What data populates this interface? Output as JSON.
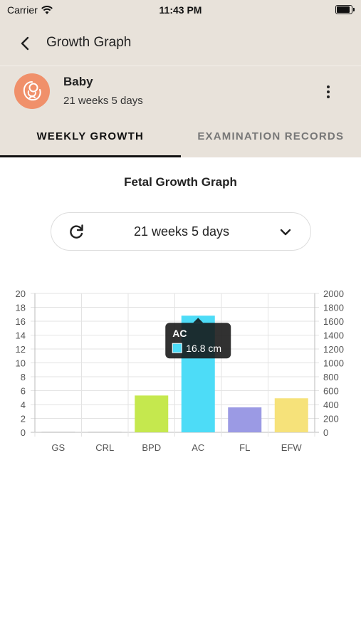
{
  "status": {
    "carrier": "Carrier",
    "time": "11:43 PM"
  },
  "nav": {
    "title": "Growth Graph"
  },
  "profile": {
    "name": "Baby",
    "age": "21 weeks 5 days"
  },
  "tabs": [
    {
      "label": "WEEKLY GROWTH",
      "active": true
    },
    {
      "label": "EXAMINATION RECORDS",
      "active": false
    }
  ],
  "graph": {
    "title": "Fetal Growth Graph"
  },
  "selector": {
    "value": "21 weeks 5 days"
  },
  "chart_data": {
    "type": "bar",
    "categories": [
      "GS",
      "CRL",
      "BPD",
      "AC",
      "FL",
      "EFW"
    ],
    "values": [
      0,
      0,
      5.3,
      16.8,
      3.6,
      490
    ],
    "axis": [
      "left",
      "left",
      "left",
      "left",
      "left",
      "right"
    ],
    "colors": [
      "#cccccc",
      "#cccccc",
      "#c5e84e",
      "#4ddcf7",
      "#9b9ae4",
      "#f6e27a"
    ],
    "ylim_left": [
      0,
      20
    ],
    "yticks_left": [
      0,
      2,
      4,
      6,
      8,
      10,
      12,
      14,
      16,
      18,
      20
    ],
    "ylim_right": [
      0,
      2000
    ],
    "yticks_right": [
      0,
      200,
      400,
      600,
      800,
      1000,
      1200,
      1400,
      1600,
      1800,
      2000
    ],
    "grid": true,
    "tooltip": {
      "category": "AC",
      "label": "16.8 cm",
      "color": "#4ddcf7"
    }
  }
}
